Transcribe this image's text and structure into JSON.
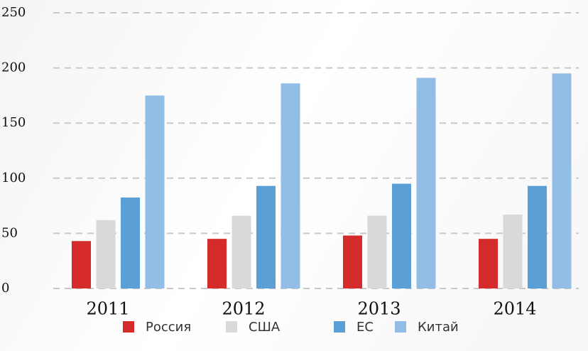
{
  "chart_data": {
    "type": "bar",
    "categories": [
      "2011",
      "2012",
      "2013",
      "2014"
    ],
    "series": [
      {
        "name": "Россия",
        "color": "#d52b2b",
        "values": [
          43,
          45,
          48,
          45
        ]
      },
      {
        "name": "США",
        "color": "#d9d9d9",
        "values": [
          62,
          66,
          66,
          67
        ]
      },
      {
        "name": "ЕС",
        "color": "#5a9fd6",
        "values": [
          82.5,
          93,
          95,
          93
        ]
      },
      {
        "name": "Китай",
        "color": "#92bde7",
        "values": [
          175,
          186,
          191,
          195
        ]
      }
    ],
    "ylim": [
      0,
      250
    ],
    "yticks": [
      0,
      50,
      100,
      150,
      200,
      250
    ],
    "grid": true,
    "legend": "bottom"
  }
}
